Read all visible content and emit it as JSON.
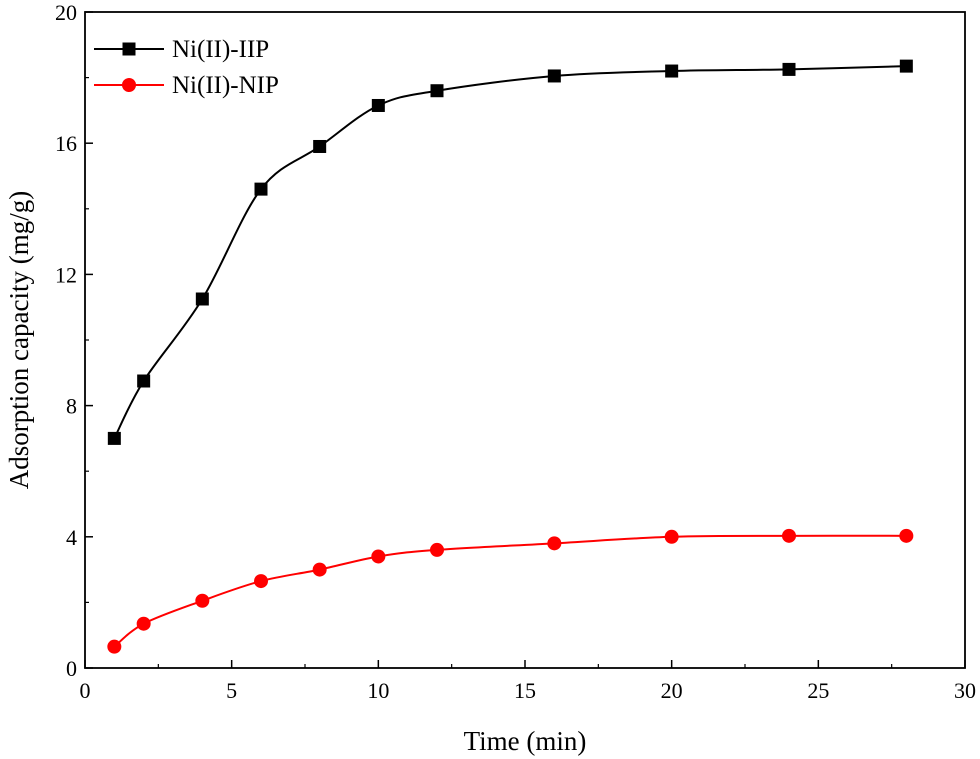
{
  "chart_data": {
    "type": "line",
    "title": "",
    "xlabel": "Time (min)",
    "ylabel": "Adsorption capacity (mg/g)",
    "xlim": [
      0,
      30
    ],
    "ylim": [
      0,
      20
    ],
    "xticks": [
      0,
      5,
      10,
      15,
      20,
      25,
      30
    ],
    "yticks": [
      0,
      4,
      8,
      12,
      16,
      20
    ],
    "grid": false,
    "legend_position": "top-left",
    "x": [
      1,
      2,
      4,
      6,
      8,
      10,
      12,
      16,
      20,
      24,
      28
    ],
    "series": [
      {
        "name": "Ni(II)-IIP",
        "color": "#000000",
        "marker": "square",
        "values": [
          7.0,
          8.75,
          11.25,
          14.6,
          15.9,
          17.15,
          17.6,
          18.05,
          18.2,
          18.25,
          18.35
        ]
      },
      {
        "name": "Ni(II)-NIP",
        "color": "#ff0000",
        "marker": "circle",
        "values": [
          0.65,
          1.35,
          2.05,
          2.65,
          3.0,
          3.4,
          3.6,
          3.8,
          4.0,
          4.03,
          4.03
        ]
      }
    ]
  }
}
